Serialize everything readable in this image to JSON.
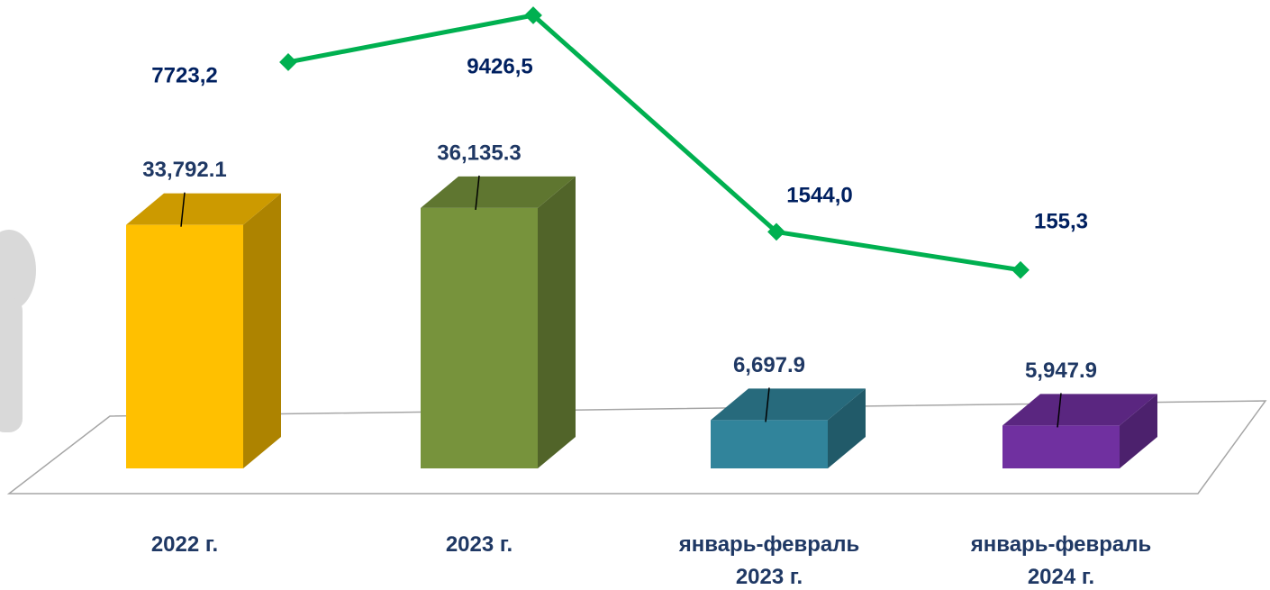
{
  "chart_data": {
    "type": "bar",
    "categories": [
      "2022 г.",
      "2023 г.",
      "январь-февраль 2023 г.",
      "январь-февраль 2024 г."
    ],
    "series": [
      {
        "type": "bar",
        "colors": [
          "#ffc000",
          "#77933c",
          "#31849b",
          "#7030a0"
        ],
        "values": [
          33792.1,
          36135.3,
          6697.9,
          5947.9
        ],
        "value_labels": [
          "33,792.1",
          "36,135.3",
          "6,697.9",
          "5,947.9"
        ]
      },
      {
        "type": "line",
        "color": "#00b050",
        "values": [
          7723.2,
          9426.5,
          1544.0,
          155.3
        ],
        "value_labels": [
          "7723,2",
          "9426,5",
          "1544,0",
          "155,3"
        ]
      }
    ]
  }
}
